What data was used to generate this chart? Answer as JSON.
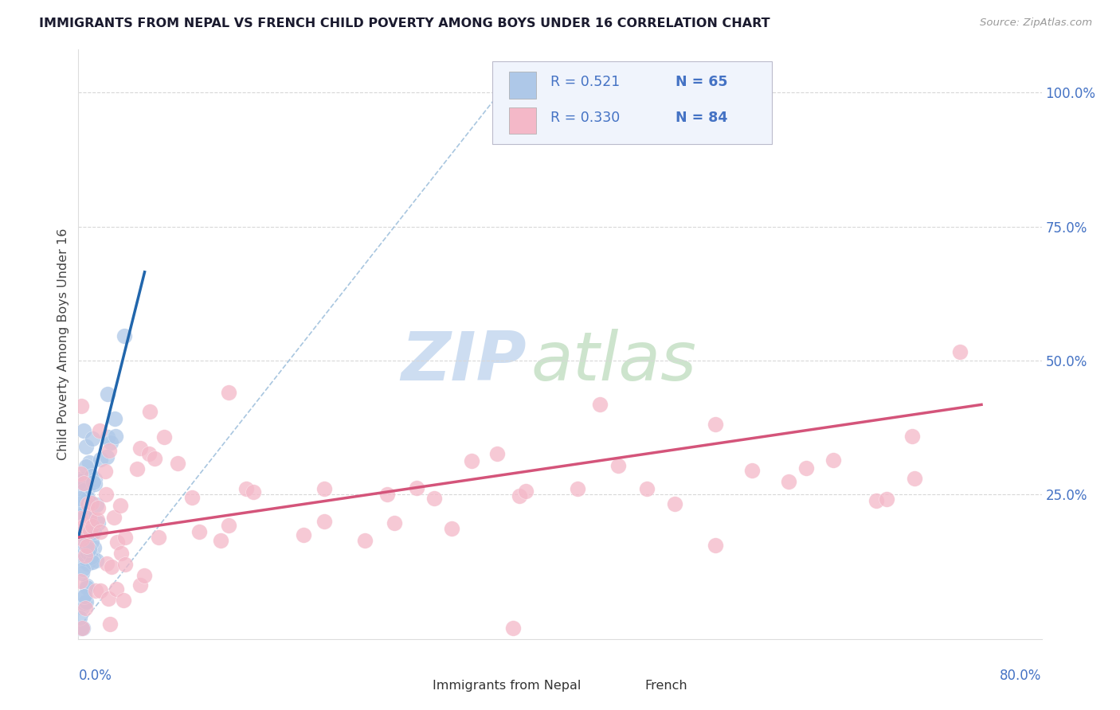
{
  "title": "IMMIGRANTS FROM NEPAL VS FRENCH CHILD POVERTY AMONG BOYS UNDER 16 CORRELATION CHART",
  "source": "Source: ZipAtlas.com",
  "ylabel": "Child Poverty Among Boys Under 16",
  "xlim": [
    0,
    0.8
  ],
  "ylim": [
    -0.02,
    1.08
  ],
  "ytick_values": [
    0.25,
    0.5,
    0.75,
    1.0
  ],
  "ytick_labels": [
    "25.0%",
    "50.0%",
    "75.0%",
    "100.0%"
  ],
  "legend_r1": "R = 0.521",
  "legend_n1": "N = 65",
  "legend_r2": "R = 0.330",
  "legend_n2": "N = 84",
  "legend_label1": "Immigrants from Nepal",
  "legend_label2": "French",
  "blue_dot_color": "#aec8e8",
  "pink_dot_color": "#f4b8c8",
  "blue_line_color": "#2166ac",
  "pink_line_color": "#d4547a",
  "dash_line_color": "#93b8d8",
  "r_value_color": "#4472c4",
  "n_value_color": "#4472c4",
  "title_color": "#1a1a2e",
  "source_color": "#999999",
  "grid_color": "#d8d8d8",
  "axis_label_color": "#4472c4",
  "legend_text_color": "#333333",
  "watermark_zip_color": "#c5d8ef",
  "watermark_atlas_color": "#c5e0c5"
}
